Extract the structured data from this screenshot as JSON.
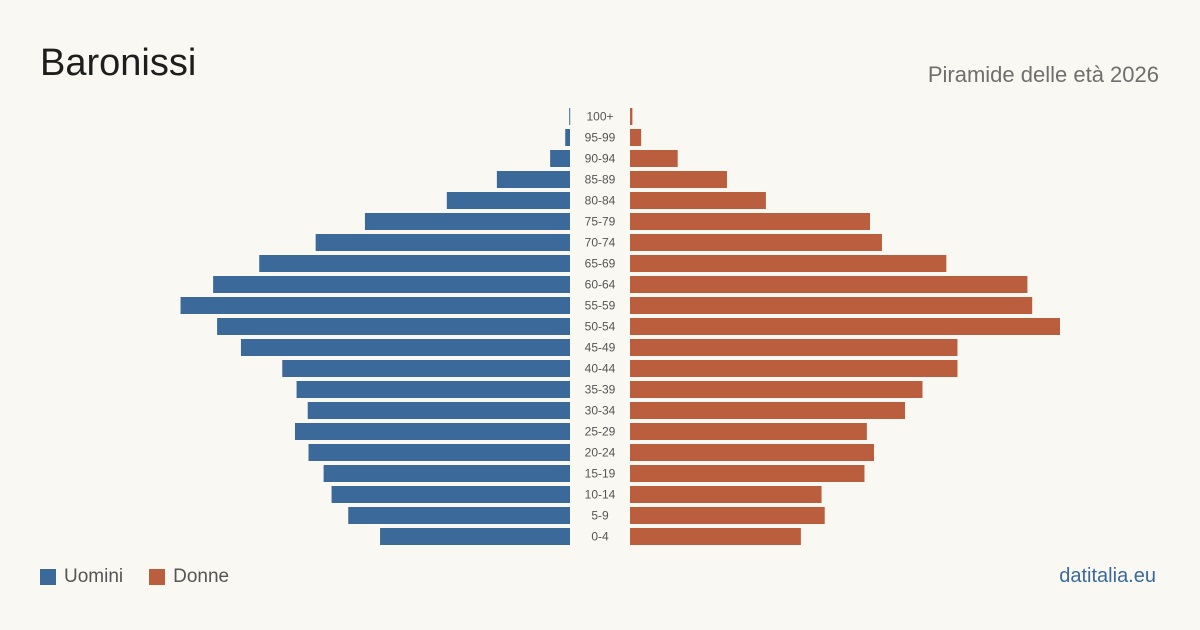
{
  "header": {
    "title": "Baronissi",
    "subtitle": "Piramide delle età 2026"
  },
  "legend": {
    "men_label": "Uomini",
    "women_label": "Donne"
  },
  "credit": "datitalia.eu",
  "colors": {
    "men": "#3b6a9a",
    "women": "#bb5e3d",
    "background": "#faf8f3"
  },
  "chart_data": {
    "type": "bar",
    "orientation": "horizontal-population-pyramid",
    "categories": [
      "100+",
      "95-99",
      "90-94",
      "85-89",
      "80-84",
      "75-79",
      "70-74",
      "65-69",
      "60-64",
      "55-59",
      "50-54",
      "45-49",
      "40-44",
      "35-39",
      "30-34",
      "25-29",
      "20-24",
      "15-19",
      "10-14",
      "5-9",
      "0-4"
    ],
    "series": [
      {
        "name": "Uomini",
        "values": [
          1,
          6,
          25,
          92,
          155,
          258,
          320,
          391,
          449,
          490,
          444,
          414,
          362,
          344,
          330,
          346,
          329,
          310,
          300,
          279,
          239
        ]
      },
      {
        "name": "Donne",
        "values": [
          3,
          14,
          60,
          122,
          171,
          302,
          317,
          398,
          500,
          506,
          541,
          412,
          412,
          368,
          346,
          298,
          307,
          295,
          241,
          245,
          215
        ]
      }
    ],
    "xlim": [
      0,
      541
    ],
    "grid": false,
    "legend_position": "bottom-left"
  }
}
